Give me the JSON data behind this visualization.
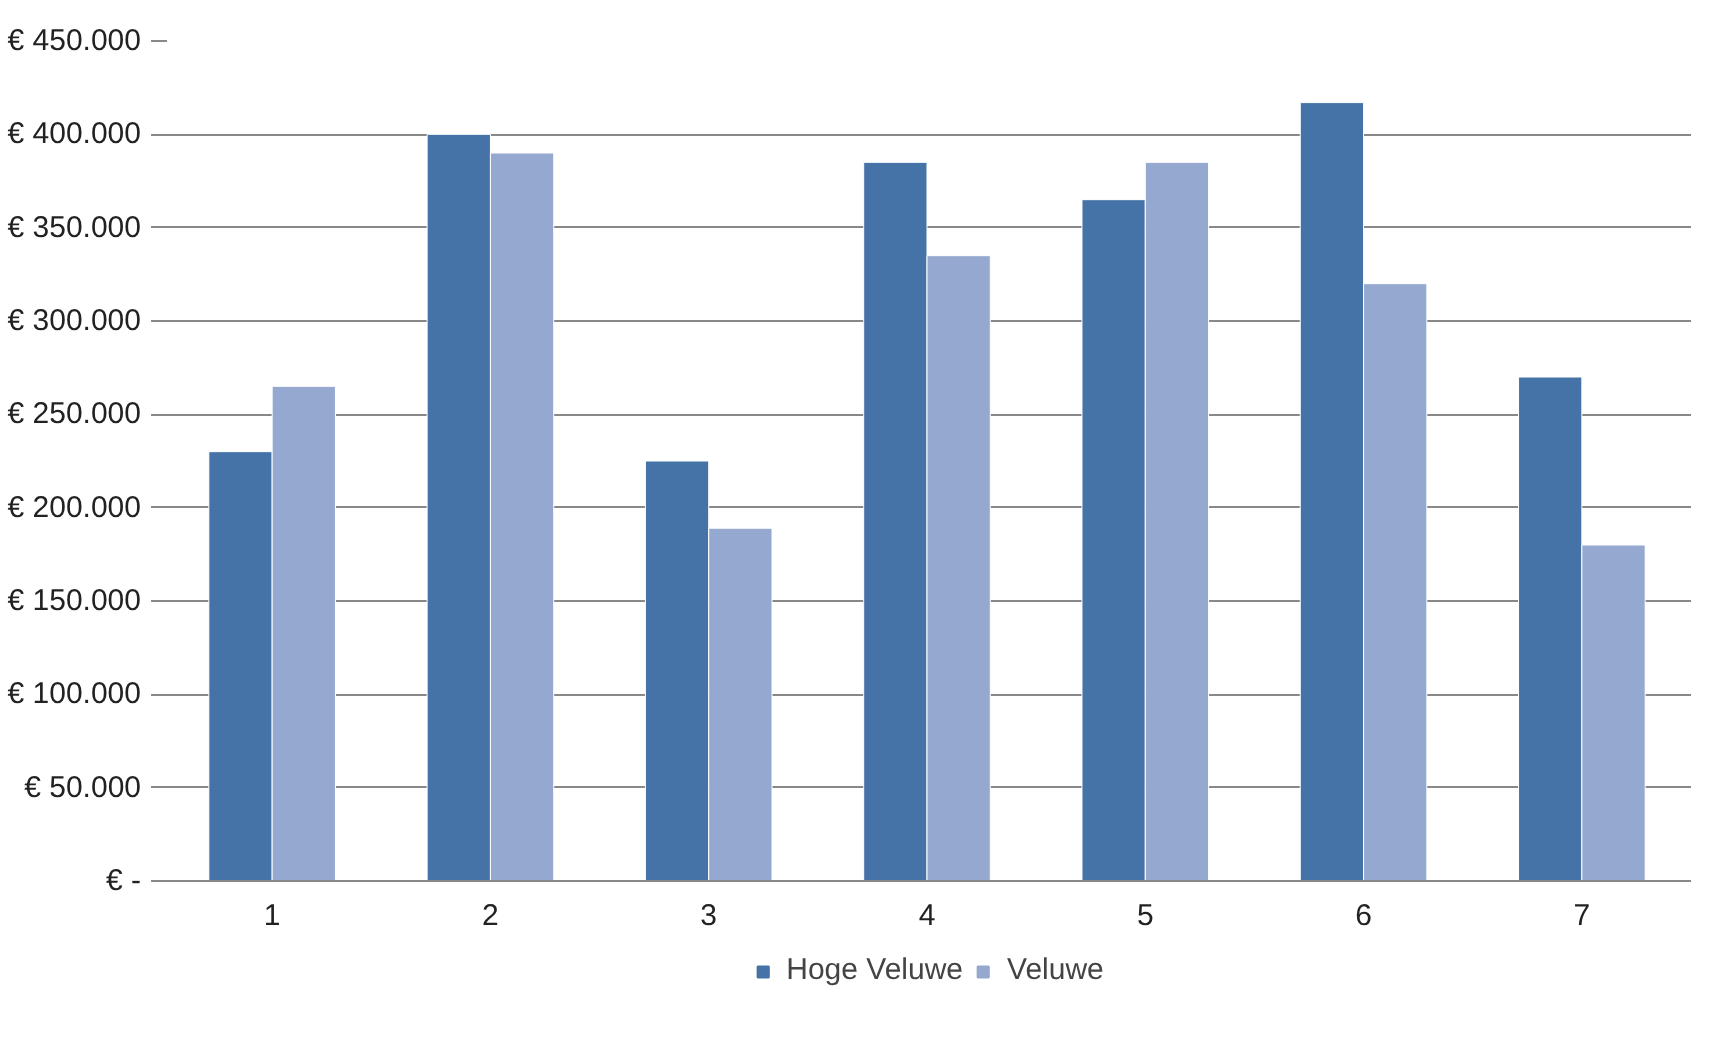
{
  "chart_data": {
    "type": "bar",
    "categories": [
      "1",
      "2",
      "3",
      "4",
      "5",
      "6",
      "7"
    ],
    "series": [
      {
        "name": "Hoge Veluwe",
        "color": "#4572a7",
        "values": [
          230000,
          400000,
          225000,
          385000,
          365000,
          417000,
          270000
        ]
      },
      {
        "name": "Veluwe",
        "color": "#95a9d0",
        "values": [
          265000,
          390000,
          189000,
          335000,
          385000,
          320000,
          180000
        ]
      }
    ],
    "ylim": [
      0,
      450000
    ],
    "yticks": [
      {
        "value": 0,
        "label": "€ -"
      },
      {
        "value": 50000,
        "label": "€ 50.000"
      },
      {
        "value": 100000,
        "label": "€ 100.000"
      },
      {
        "value": 150000,
        "label": "€ 150.000"
      },
      {
        "value": 200000,
        "label": "€ 200.000"
      },
      {
        "value": 250000,
        "label": "€ 250.000"
      },
      {
        "value": 300000,
        "label": "€ 300.000"
      },
      {
        "value": 350000,
        "label": "€ 350.000"
      },
      {
        "value": 400000,
        "label": "€ 400.000"
      },
      {
        "value": 450000,
        "label": "€ 450.000"
      }
    ],
    "grid": "y",
    "legend": "bottom"
  }
}
